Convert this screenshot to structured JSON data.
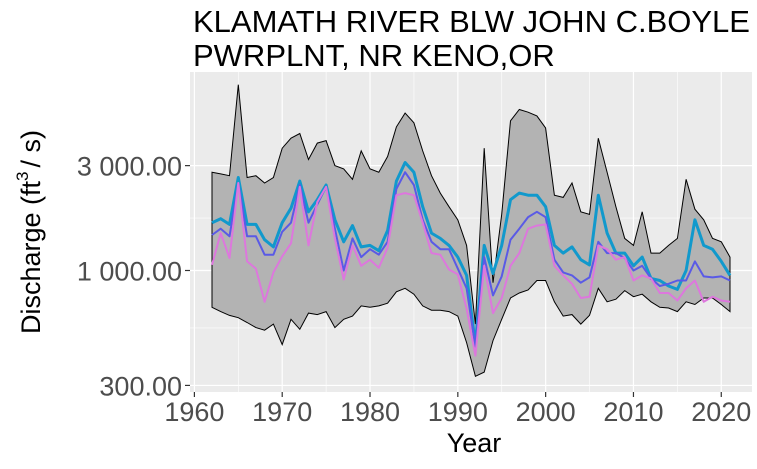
{
  "chart_data": {
    "type": "area",
    "title": "KLAMATH RIVER BLW JOHN C.BOYLE PWRPLNT, NR KENO,OR",
    "title_lines": [
      "KLAMATH RIVER BLW JOHN C.BOYLE",
      "PWRPLNT, NR KENO,OR"
    ],
    "xlabel": "Year",
    "ylabel_main": "Discharge (ft",
    "ylabel_sup": "3",
    "ylabel_tail": "/ s)",
    "y_scale": "log10",
    "xlim": [
      1959.5,
      2023.5
    ],
    "ylim": [
      280,
      8000
    ],
    "x_ticks": [
      1960,
      1970,
      1980,
      1990,
      2000,
      2010,
      2020
    ],
    "x_tick_labels": [
      "1960",
      "1970",
      "1980",
      "1990",
      "2000",
      "2010",
      "2020"
    ],
    "y_ticks": [
      300,
      1000,
      3000
    ],
    "y_tick_labels": [
      "300.00",
      "1 000.00",
      "3 000.00"
    ],
    "grid": true,
    "legend": "none",
    "x": [
      1962,
      1963,
      1964,
      1965,
      1966,
      1967,
      1968,
      1969,
      1970,
      1971,
      1972,
      1973,
      1974,
      1975,
      1976,
      1977,
      1978,
      1979,
      1980,
      1981,
      1982,
      1983,
      1984,
      1985,
      1986,
      1987,
      1988,
      1989,
      1990,
      1991,
      1992,
      1993,
      1994,
      1995,
      1996,
      1997,
      1998,
      1999,
      2000,
      2001,
      2002,
      2003,
      2004,
      2005,
      2006,
      2007,
      2008,
      2009,
      2010,
      2011,
      2012,
      2013,
      2014,
      2015,
      2016,
      2017,
      2018,
      2019,
      2020,
      2021
    ],
    "series": [
      {
        "role": "range",
        "color": "#b3b3b3",
        "stroke": "#000000",
        "upper": [
          2800,
          2750,
          2700,
          7000,
          2650,
          2700,
          2500,
          2650,
          3600,
          4000,
          4200,
          3200,
          3800,
          3900,
          3000,
          2900,
          2600,
          3500,
          2900,
          2800,
          3300,
          4500,
          5200,
          4700,
          3500,
          2700,
          2250,
          1950,
          1700,
          1300,
          570,
          3600,
          880,
          1800,
          4800,
          5400,
          5250,
          5050,
          4450,
          2200,
          2150,
          2500,
          1850,
          1800,
          4000,
          2800,
          1950,
          1400,
          1300,
          1850,
          1200,
          1200,
          1300,
          1400,
          2600,
          1900,
          1700,
          1400,
          1350,
          1150
        ],
        "lower": [
          680,
          650,
          625,
          610,
          580,
          550,
          535,
          570,
          460,
          600,
          540,
          640,
          630,
          650,
          550,
          600,
          620,
          690,
          680,
          690,
          710,
          800,
          830,
          780,
          690,
          660,
          660,
          650,
          620,
          470,
          330,
          345,
          480,
          600,
          750,
          790,
          815,
          900,
          900,
          720,
          620,
          630,
          570,
          625,
          830,
          720,
          740,
          810,
          760,
          780,
          720,
          680,
          675,
          650,
          720,
          700,
          750,
          750,
          700,
          650
        ]
      },
      {
        "name": "",
        "color": "#1199cc",
        "values": [
          1650,
          1720,
          1620,
          2650,
          1620,
          1620,
          1380,
          1280,
          1650,
          1920,
          2550,
          1850,
          2100,
          2450,
          1700,
          1350,
          1600,
          1280,
          1300,
          1230,
          1520,
          2550,
          3100,
          2800,
          1950,
          1480,
          1400,
          1300,
          1150,
          950,
          460,
          1300,
          970,
          1300,
          2100,
          2250,
          2200,
          2200,
          1950,
          1300,
          1200,
          1280,
          1120,
          1060,
          2200,
          1480,
          1200,
          1200,
          1050,
          1150,
          920,
          900,
          850,
          820,
          1000,
          1700,
          1300,
          1250,
          1100,
          950
        ],
        "width": 3
      },
      {
        "name": "",
        "color": "#5a5ae6",
        "values": [
          1450,
          1550,
          1430,
          2500,
          1430,
          1430,
          1180,
          1180,
          1500,
          1650,
          2450,
          1650,
          2000,
          2400,
          1550,
          1000,
          1400,
          1150,
          1250,
          1180,
          1350,
          2350,
          2800,
          2450,
          1700,
          1350,
          1250,
          1250,
          1020,
          830,
          450,
          1150,
          770,
          940,
          1380,
          1550,
          1750,
          1850,
          1750,
          1120,
          980,
          950,
          880,
          930,
          1350,
          1200,
          1200,
          1140,
          1000,
          1050,
          920,
          850,
          870,
          900,
          900,
          1100,
          940,
          930,
          940,
          900
        ],
        "width": 2
      },
      {
        "name": "",
        "color": "#dd77dd",
        "values": [
          1060,
          1480,
          1140,
          2500,
          1100,
          1020,
          720,
          980,
          1160,
          1330,
          2400,
          1300,
          2050,
          2400,
          1400,
          910,
          1300,
          1050,
          1120,
          1030,
          1270,
          2200,
          2250,
          2200,
          1650,
          1200,
          1180,
          1010,
          960,
          670,
          410,
          1050,
          640,
          750,
          1050,
          1200,
          1550,
          1600,
          1620,
          1050,
          950,
          870,
          750,
          760,
          1300,
          1250,
          1120,
          1150,
          900,
          950,
          920,
          790,
          790,
          730,
          830,
          900,
          720,
          760,
          730,
          720
        ],
        "width": 2
      }
    ]
  }
}
